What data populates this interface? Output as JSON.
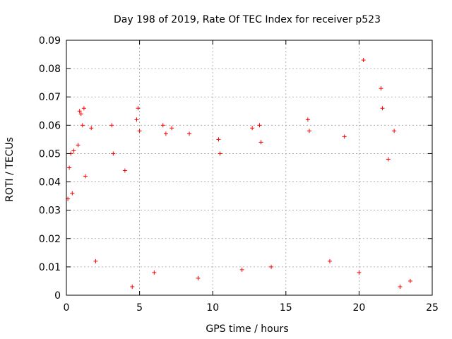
{
  "chart_data": {
    "type": "scatter",
    "title": "Day 198 of 2019, Rate Of TEC Index for receiver p523",
    "xlabel": "GPS time / hours",
    "ylabel": "ROTI / TECUs",
    "xlim": [
      0,
      25
    ],
    "ylim": [
      0,
      0.09
    ],
    "x_ticks": [
      0,
      5,
      10,
      15,
      20,
      25
    ],
    "x_tick_labels": [
      "0",
      "5",
      "10",
      "15",
      "20",
      "25"
    ],
    "y_ticks": [
      0,
      0.01,
      0.02,
      0.03,
      0.04,
      0.05,
      0.06,
      0.07,
      0.08,
      0.09
    ],
    "y_tick_labels": [
      "0",
      "0.01",
      "0.02",
      "0.03",
      "0.04",
      "0.05",
      "0.06",
      "0.07",
      "0.08",
      "0.09"
    ],
    "grid": true,
    "marker": "plus",
    "series": [
      {
        "color": "#ff0000",
        "points": [
          [
            0.1,
            0.034
          ],
          [
            0.2,
            0.045
          ],
          [
            0.3,
            0.05
          ],
          [
            0.4,
            0.036
          ],
          [
            0.5,
            0.051
          ],
          [
            0.8,
            0.053
          ],
          [
            0.9,
            0.065
          ],
          [
            1.0,
            0.064
          ],
          [
            1.1,
            0.06
          ],
          [
            1.2,
            0.066
          ],
          [
            1.3,
            0.042
          ],
          [
            1.7,
            0.059
          ],
          [
            3.1,
            0.06
          ],
          [
            3.2,
            0.05
          ],
          [
            4.0,
            0.044
          ],
          [
            4.8,
            0.062
          ],
          [
            4.9,
            0.066
          ],
          [
            5.0,
            0.058
          ],
          [
            6.6,
            0.06
          ],
          [
            6.8,
            0.057
          ],
          [
            7.2,
            0.059
          ],
          [
            8.4,
            0.057
          ],
          [
            10.4,
            0.055
          ],
          [
            10.5,
            0.05
          ],
          [
            12.7,
            0.059
          ],
          [
            13.2,
            0.06
          ],
          [
            13.3,
            0.054
          ],
          [
            16.5,
            0.062
          ],
          [
            16.6,
            0.058
          ],
          [
            19.0,
            0.056
          ],
          [
            20.3,
            0.083
          ],
          [
            21.5,
            0.073
          ],
          [
            21.6,
            0.066
          ],
          [
            22.4,
            0.058
          ],
          [
            22.0,
            0.048
          ],
          [
            2.0,
            0.012
          ],
          [
            6.0,
            0.008
          ],
          [
            9.0,
            0.006
          ],
          [
            12.0,
            0.009
          ],
          [
            14.0,
            0.01
          ],
          [
            18.0,
            0.012
          ],
          [
            20.0,
            0.008
          ],
          [
            22.8,
            0.003
          ],
          [
            23.5,
            0.005
          ],
          [
            4.5,
            0.003
          ]
        ]
      }
    ]
  }
}
